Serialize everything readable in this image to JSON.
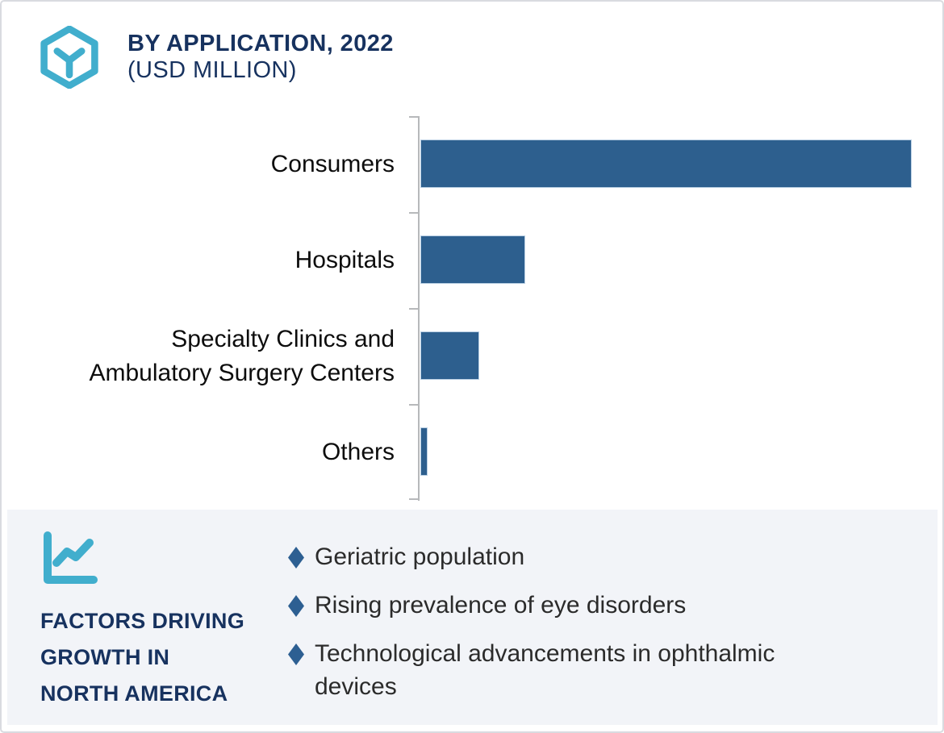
{
  "page": {
    "background": "#ffffff",
    "border_color": "#d9dbe0"
  },
  "header": {
    "icon": "hexagon-y-icon",
    "icon_color": "#41aecd",
    "title": "BY APPLICATION, 2022",
    "subtitle": "(USD MILLION)",
    "title_color": "#17325f"
  },
  "chart_data": {
    "type": "bar",
    "orientation": "horizontal",
    "title": "BY APPLICATION, 2022 (USD MILLION)",
    "categories": [
      "Consumers",
      "Hospitals",
      "Specialty Clinics and Ambulatory Surgery Centers",
      "Others"
    ],
    "category_display_lines": [
      [
        "Consumers"
      ],
      [
        "Hospitals"
      ],
      [
        "Specialty Clinics and",
        "Ambulatory Surgery Centers"
      ],
      [
        "Others"
      ]
    ],
    "values_pct_of_max": [
      100,
      21.3,
      12,
      1.4
    ],
    "value_labels_shown": false,
    "axis_value_labels": "none",
    "gridlines": false,
    "legend": "none",
    "xlabel": "",
    "ylabel": "",
    "bar_color": "#2d5f8e",
    "bar_border_color": "#b9cfe3",
    "axis_color": "#b7b9bb"
  },
  "factors_panel": {
    "icon": "line-chart-icon",
    "icon_color": "#41aecd",
    "background": "#f2f4f8",
    "heading_lines": [
      "FACTORS DRIVING",
      "GROWTH IN",
      "NORTH AMERICA"
    ],
    "heading_color": "#17325f",
    "bullet_color": "#2d5f92",
    "bullets": [
      "Geriatric population",
      "Rising prevalence of eye disorders",
      "Technological advancements in ophthalmic devices"
    ]
  }
}
